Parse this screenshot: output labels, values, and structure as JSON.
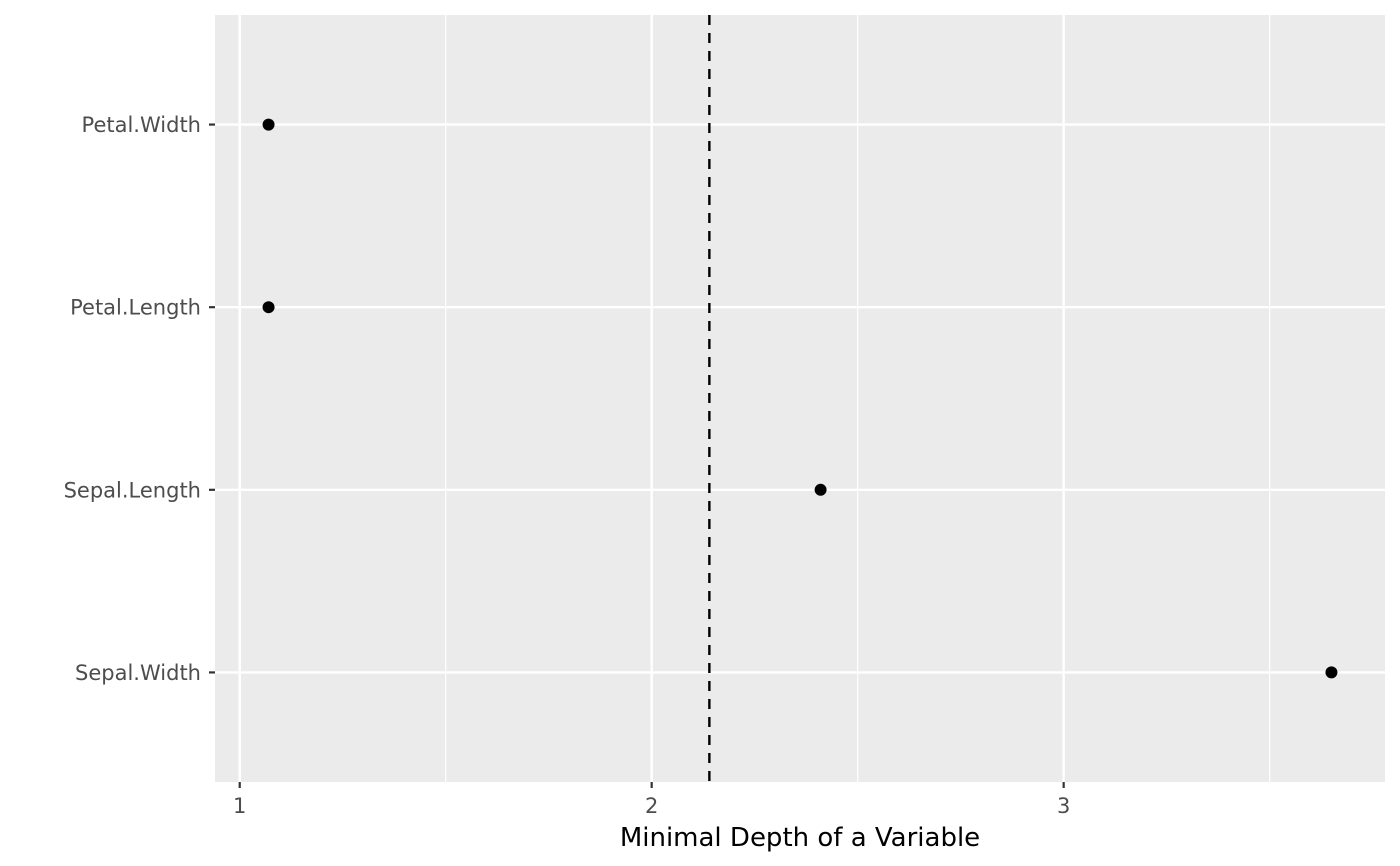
{
  "chart_data": {
    "type": "scatter",
    "title": "",
    "xlabel": "Minimal Depth of a Variable",
    "ylabel": "",
    "categories": [
      "Petal.Width",
      "Petal.Length",
      "Sepal.Length",
      "Sepal.Width"
    ],
    "values": [
      1.07,
      1.07,
      2.41,
      3.65
    ],
    "xlim": [
      0.94,
      3.78
    ],
    "x_ticks": [
      "1",
      "2",
      "3"
    ],
    "x_tick_values": [
      1,
      2,
      3
    ],
    "reference_line": {
      "x": 2.14,
      "style": "dashed",
      "color": "#000000"
    },
    "grid": true,
    "legend": "none",
    "colors": {
      "panel_background": "#ebebeb",
      "grid": "#ffffff",
      "point": "#000000",
      "tick_label": "#4d4d4d",
      "axis_title": "#000000"
    }
  }
}
